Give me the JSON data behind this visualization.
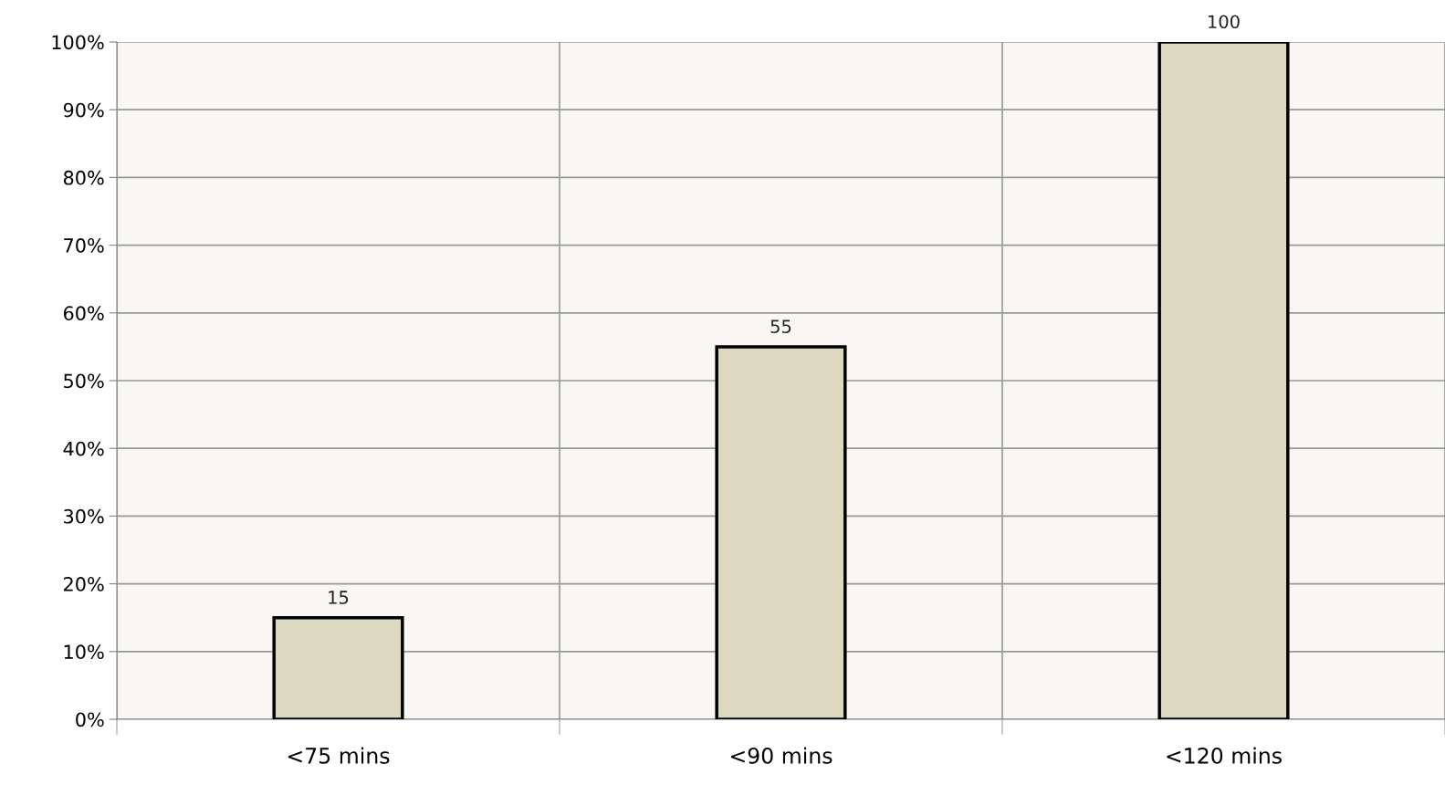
{
  "chart_data": {
    "type": "bar",
    "categories": [
      "<75 mins",
      "<90 mins",
      "<120 mins"
    ],
    "values": [
      15,
      55,
      100
    ],
    "color": "#ddd8c0",
    "data_labels": true,
    "ylim": [
      0,
      100
    ],
    "yticks": [
      {
        "value": 0,
        "label": "0%"
      },
      {
        "value": 10,
        "label": "10%"
      },
      {
        "value": 20,
        "label": "20%"
      },
      {
        "value": 30,
        "label": "30%"
      },
      {
        "value": 40,
        "label": "40%"
      },
      {
        "value": 50,
        "label": "50%"
      },
      {
        "value": 60,
        "label": "60%"
      },
      {
        "value": 70,
        "label": "70%"
      },
      {
        "value": 80,
        "label": "80%"
      },
      {
        "value": 90,
        "label": "90%"
      },
      {
        "value": 100,
        "label": "100%"
      }
    ],
    "grid": true
  }
}
